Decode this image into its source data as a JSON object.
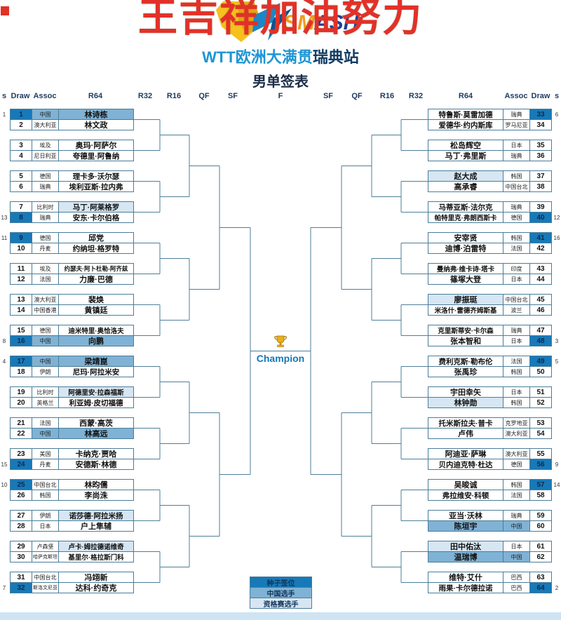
{
  "watermark": "王吉祥加油努力",
  "logo": {
    "word_left": "SM",
    "word_right": "ASH"
  },
  "title": {
    "event_blue": "WTT欧洲大满贯",
    "event_dark": "瑞典站",
    "sheet": "男单签表"
  },
  "round_headers": [
    "s",
    "Draw",
    "Assoc",
    "R64",
    "R32",
    "R16",
    "QF",
    "SF",
    "F",
    "SF",
    "QF",
    "R16",
    "R32",
    "R64",
    "Assoc",
    "Draw",
    "s"
  ],
  "champion_label": "Champion",
  "legend": [
    {
      "label": "种子签位",
      "type": "seed"
    },
    {
      "label": "中国选手",
      "type": "china"
    },
    {
      "label": "资格赛选手",
      "type": "qualifier"
    }
  ],
  "colors": {
    "seed": "#1779b8",
    "china": "#7fb2d4",
    "qualifier": "#d6e6f2",
    "line": "#4e7e98",
    "border": "#4a7d99",
    "title_blue": "#1e95d4",
    "title_dark": "#123c63",
    "watermark_red": "#e23128",
    "seed_cell_text": "#0c2b50",
    "footer_band": "#cfe4f2"
  },
  "players": {
    "left": [
      {
        "s": "1",
        "draw": "1",
        "assoc": "中国",
        "name": "林诗栋",
        "seeded": true,
        "tag": "china"
      },
      {
        "s": "",
        "draw": "2",
        "assoc": "澳大利亚",
        "name": "林文政",
        "seeded": false,
        "tag": ""
      },
      {
        "s": "",
        "draw": "3",
        "assoc": "埃及",
        "name": "奥玛·阿萨尔",
        "seeded": false,
        "tag": ""
      },
      {
        "s": "",
        "draw": "4",
        "assoc": "尼日利亚",
        "name": "夸德里·阿鲁纳",
        "seeded": false,
        "tag": ""
      },
      {
        "s": "",
        "draw": "5",
        "assoc": "德国",
        "name": "理卡多·沃尔瑟",
        "seeded": false,
        "tag": ""
      },
      {
        "s": "",
        "draw": "6",
        "assoc": "瑞典",
        "name": "埃利亚斯·拉内弗",
        "seeded": false,
        "tag": ""
      },
      {
        "s": "",
        "draw": "7",
        "assoc": "比利时",
        "name": "马丁·阿莱格罗",
        "seeded": false,
        "tag": "qualifier"
      },
      {
        "s": "13",
        "draw": "8",
        "assoc": "瑞典",
        "name": "安东·卡尔伯格",
        "seeded": true,
        "tag": ""
      },
      {
        "s": "11",
        "draw": "9",
        "assoc": "德国",
        "name": "邱党",
        "seeded": true,
        "tag": ""
      },
      {
        "s": "",
        "draw": "10",
        "assoc": "丹麦",
        "name": "约纳坦·格罗特",
        "seeded": false,
        "tag": ""
      },
      {
        "s": "",
        "draw": "11",
        "assoc": "埃及",
        "name": "约瑟夫·阿卜杜勒-阿齐兹",
        "seeded": false,
        "tag": ""
      },
      {
        "s": "",
        "draw": "12",
        "assoc": "法国",
        "name": "力廉·巴德",
        "seeded": false,
        "tag": ""
      },
      {
        "s": "",
        "draw": "13",
        "assoc": "澳大利亚",
        "name": "裴焕",
        "seeded": false,
        "tag": ""
      },
      {
        "s": "",
        "draw": "14",
        "assoc": "中国香港",
        "name": "黄镇廷",
        "seeded": false,
        "tag": ""
      },
      {
        "s": "",
        "draw": "15",
        "assoc": "德国",
        "name": "迪米特里·奥恰洛夫",
        "seeded": false,
        "tag": ""
      },
      {
        "s": "8",
        "draw": "16",
        "assoc": "中国",
        "name": "向鹏",
        "seeded": true,
        "tag": "china"
      },
      {
        "s": "4",
        "draw": "17",
        "assoc": "中国",
        "name": "梁靖崑",
        "seeded": true,
        "tag": "china"
      },
      {
        "s": "",
        "draw": "18",
        "assoc": "伊朗",
        "name": "尼玛·阿拉米安",
        "seeded": false,
        "tag": ""
      },
      {
        "s": "",
        "draw": "19",
        "assoc": "比利时",
        "name": "阿德里安·拉森福斯",
        "seeded": false,
        "tag": "qualifier"
      },
      {
        "s": "",
        "draw": "20",
        "assoc": "英格兰",
        "name": "利亚姆·皮切福德",
        "seeded": false,
        "tag": ""
      },
      {
        "s": "",
        "draw": "21",
        "assoc": "法国",
        "name": "西蒙·高茨",
        "seeded": false,
        "tag": ""
      },
      {
        "s": "",
        "draw": "22",
        "assoc": "中国",
        "name": "林高远",
        "seeded": false,
        "tag": "china"
      },
      {
        "s": "",
        "draw": "23",
        "assoc": "美国",
        "name": "卡纳克·贾哈",
        "seeded": false,
        "tag": ""
      },
      {
        "s": "15",
        "draw": "24",
        "assoc": "丹麦",
        "name": "安德斯·林德",
        "seeded": true,
        "tag": ""
      },
      {
        "s": "10",
        "draw": "25",
        "assoc": "中国台北",
        "name": "林昀儒",
        "seeded": true,
        "tag": ""
      },
      {
        "s": "",
        "draw": "26",
        "assoc": "韩国",
        "name": "李尚洙",
        "seeded": false,
        "tag": ""
      },
      {
        "s": "",
        "draw": "27",
        "assoc": "伊朗",
        "name": "诺莎德·阿拉米扬",
        "seeded": false,
        "tag": "qualifier"
      },
      {
        "s": "",
        "draw": "28",
        "assoc": "日本",
        "name": "户上隼辅",
        "seeded": false,
        "tag": ""
      },
      {
        "s": "",
        "draw": "29",
        "assoc": "卢森堡",
        "name": "卢卡·姆拉德诺维奇",
        "seeded": false,
        "tag": "qualifier"
      },
      {
        "s": "",
        "draw": "30",
        "assoc": "哈萨克斯坦",
        "name": "基里尔·格拉斯门科",
        "seeded": false,
        "tag": ""
      },
      {
        "s": "",
        "draw": "31",
        "assoc": "中国台北",
        "name": "冯翊新",
        "seeded": false,
        "tag": ""
      },
      {
        "s": "7",
        "draw": "32",
        "assoc": "斯洛文尼亚",
        "name": "达科·约奇克",
        "seeded": true,
        "tag": ""
      }
    ],
    "right": [
      {
        "s": "6",
        "draw": "33",
        "assoc": "瑞典",
        "name": "特鲁斯·莫雷加德",
        "seeded": true,
        "tag": ""
      },
      {
        "s": "",
        "draw": "34",
        "assoc": "罗马尼亚",
        "name": "爱德华·约内斯库",
        "seeded": false,
        "tag": ""
      },
      {
        "s": "",
        "draw": "35",
        "assoc": "日本",
        "name": "松岛辉空",
        "seeded": false,
        "tag": ""
      },
      {
        "s": "",
        "draw": "36",
        "assoc": "瑞典",
        "name": "马丁·弗里斯",
        "seeded": false,
        "tag": ""
      },
      {
        "s": "",
        "draw": "37",
        "assoc": "韩国",
        "name": "赵大成",
        "seeded": false,
        "tag": "qualifier"
      },
      {
        "s": "",
        "draw": "38",
        "assoc": "中国台北",
        "name": "高承睿",
        "seeded": false,
        "tag": ""
      },
      {
        "s": "",
        "draw": "39",
        "assoc": "瑞典",
        "name": "马蒂亚斯·法尔克",
        "seeded": false,
        "tag": ""
      },
      {
        "s": "12",
        "draw": "40",
        "assoc": "德国",
        "name": "帕特里克·弗朗西斯卡",
        "seeded": true,
        "tag": ""
      },
      {
        "s": "16",
        "draw": "41",
        "assoc": "韩国",
        "name": "安宰贤",
        "seeded": true,
        "tag": ""
      },
      {
        "s": "",
        "draw": "42",
        "assoc": "法国",
        "name": "迪博·泊雷特",
        "seeded": false,
        "tag": ""
      },
      {
        "s": "",
        "draw": "43",
        "assoc": "印度",
        "name": "曼纳弗·维卡诗·塔卡",
        "seeded": false,
        "tag": ""
      },
      {
        "s": "",
        "draw": "44",
        "assoc": "日本",
        "name": "篠塚大登",
        "seeded": false,
        "tag": ""
      },
      {
        "s": "",
        "draw": "45",
        "assoc": "中国台北",
        "name": "廖振珽",
        "seeded": false,
        "tag": "qualifier"
      },
      {
        "s": "",
        "draw": "46",
        "assoc": "波兰",
        "name": "米洛什·雷德齐姆斯基",
        "seeded": false,
        "tag": ""
      },
      {
        "s": "",
        "draw": "47",
        "assoc": "瑞典",
        "name": "克里斯蒂安·卡尔森",
        "seeded": false,
        "tag": ""
      },
      {
        "s": "3",
        "draw": "48",
        "assoc": "日本",
        "name": "张本智和",
        "seeded": true,
        "tag": ""
      },
      {
        "s": "5",
        "draw": "49",
        "assoc": "法国",
        "name": "费利克斯·勒布伦",
        "seeded": true,
        "tag": ""
      },
      {
        "s": "",
        "draw": "50",
        "assoc": "韩国",
        "name": "张禹珍",
        "seeded": false,
        "tag": ""
      },
      {
        "s": "",
        "draw": "51",
        "assoc": "日本",
        "name": "宇田幸矢",
        "seeded": false,
        "tag": ""
      },
      {
        "s": "",
        "draw": "52",
        "assoc": "韩国",
        "name": "林钟勋",
        "seeded": false,
        "tag": "qualifier"
      },
      {
        "s": "",
        "draw": "53",
        "assoc": "克罗地亚",
        "name": "托米斯拉夫·普卡",
        "seeded": false,
        "tag": ""
      },
      {
        "s": "",
        "draw": "54",
        "assoc": "澳大利亚",
        "name": "卢伟",
        "seeded": false,
        "tag": ""
      },
      {
        "s": "",
        "draw": "55",
        "assoc": "澳大利亚",
        "name": "阿迪亚·萨琳",
        "seeded": false,
        "tag": ""
      },
      {
        "s": "9",
        "draw": "56",
        "assoc": "德国",
        "name": "贝内迪克特·杜达",
        "seeded": true,
        "tag": ""
      },
      {
        "s": "14",
        "draw": "57",
        "assoc": "韩国",
        "name": "吴晙诚",
        "seeded": true,
        "tag": ""
      },
      {
        "s": "",
        "draw": "58",
        "assoc": "法国",
        "name": "弗拉维安·科顿",
        "seeded": false,
        "tag": ""
      },
      {
        "s": "",
        "draw": "59",
        "assoc": "瑞典",
        "name": "亚当·沃林",
        "seeded": false,
        "tag": ""
      },
      {
        "s": "",
        "draw": "60",
        "assoc": "中国",
        "name": "陈垣宇",
        "seeded": false,
        "tag": "china"
      },
      {
        "s": "",
        "draw": "61",
        "assoc": "日本",
        "name": "田中佑汰",
        "seeded": false,
        "tag": "qualifier"
      },
      {
        "s": "",
        "draw": "62",
        "assoc": "中国",
        "name": "温瑞博",
        "seeded": false,
        "tag": "china"
      },
      {
        "s": "",
        "draw": "63",
        "assoc": "巴西",
        "name": "维特·艾什",
        "seeded": false,
        "tag": ""
      },
      {
        "s": "2",
        "draw": "64",
        "assoc": "巴西",
        "name": "雨果·卡尔德拉诺",
        "seeded": true,
        "tag": ""
      }
    ]
  }
}
